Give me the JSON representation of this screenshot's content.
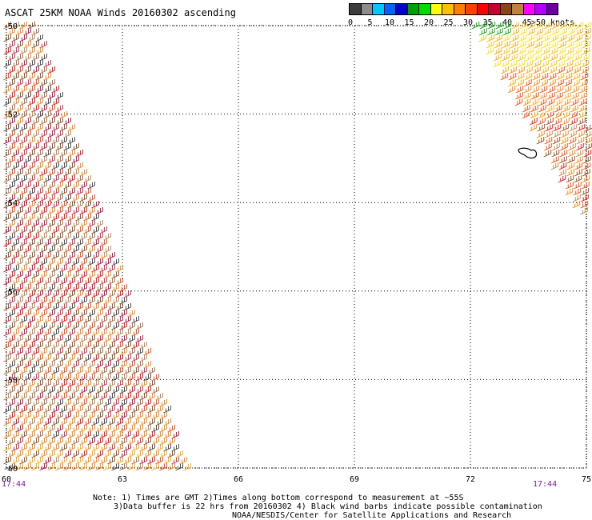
{
  "title": "ASCAT 25KM NOAA Winds 20160302 ascending",
  "colorbar": {
    "labels": [
      "0",
      "5",
      "10",
      "15",
      "20",
      "25",
      "30",
      "35",
      "40",
      "45",
      ">50 knots"
    ],
    "colors": [
      "#3c3c3c",
      "#8c8c8c",
      "#00c8ff",
      "#0064ff",
      "#0000cc",
      "#00a000",
      "#00dc00",
      "#ffff00",
      "#ffc000",
      "#ff8000",
      "#ff4000",
      "#ff0000",
      "#c80032",
      "#8b4513",
      "#c08040",
      "#ff00ff",
      "#b000ff",
      "#6a00a0"
    ]
  },
  "map": {
    "lat_labels": [
      "-50",
      "-52",
      "-54",
      "-56",
      "-58",
      "-60"
    ],
    "lon_labels": [
      "60",
      "63",
      "66",
      "69",
      "72",
      "75"
    ],
    "lat_values": [
      -50,
      -52,
      -54,
      -56,
      -58,
      -60
    ],
    "lon_values": [
      60,
      63,
      66,
      69,
      72,
      75
    ]
  },
  "times": {
    "left": "17:44",
    "right": "17:44"
  },
  "notes": {
    "line1": "Note: 1) Times are GMT 2)Times along bottom correspond to measurement at ~55S",
    "line2": "3)Data buffer is 22 hrs from 20160302 4) Black wind barbs indicate possible contamination",
    "line3": "NOAA/NESDIS/Center for Satellite Applications and Research"
  }
}
